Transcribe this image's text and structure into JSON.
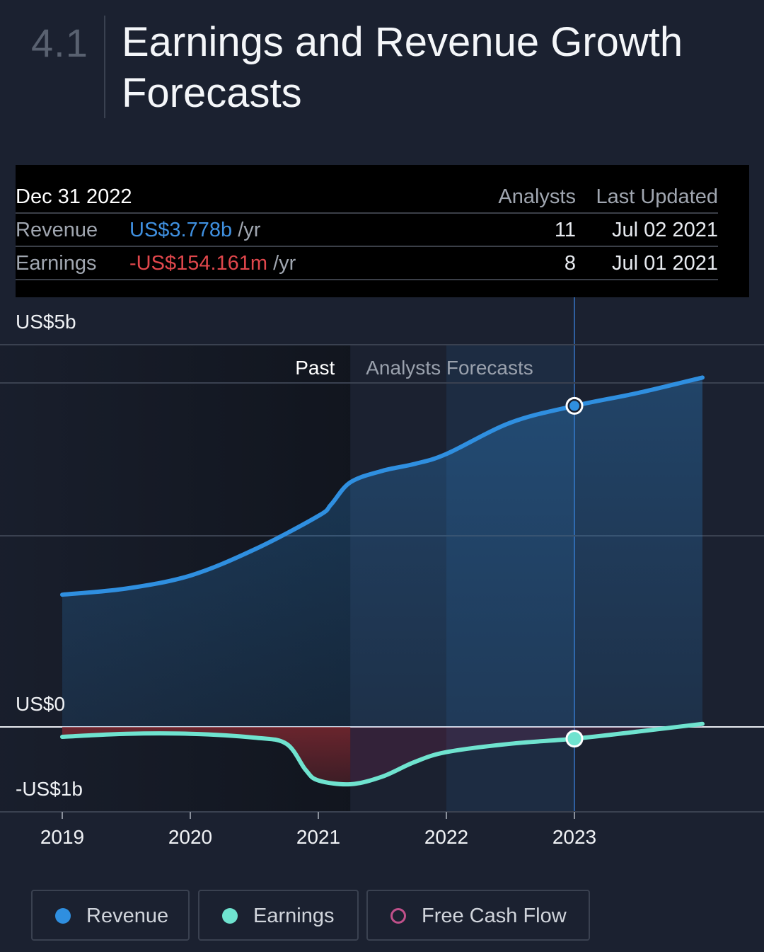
{
  "header": {
    "section_number": "4.1",
    "title": "Earnings and Revenue Growth Forecasts"
  },
  "info_table": {
    "date": "Dec 31 2022",
    "col_analysts": "Analysts",
    "col_last_updated": "Last Updated",
    "rows": [
      {
        "label": "Revenue",
        "value": "US$3.778b",
        "unit": "/yr",
        "analysts": "11",
        "last_updated": "Jul 02 2021"
      },
      {
        "label": "Earnings",
        "value": "-US$154.161m",
        "unit": "/yr",
        "analysts": "8",
        "last_updated": "Jul 01 2021"
      }
    ]
  },
  "legend": {
    "revenue": "Revenue",
    "earnings": "Earnings",
    "free_cash_flow": "Free Cash Flow"
  },
  "colors": {
    "background": "#1b2130",
    "revenue": "#2f8fe0",
    "earnings": "#6fe3cf",
    "free_cash_flow": "#c0508a",
    "negative_fill": "#8a2a32",
    "accent_red": "#e0474c"
  },
  "chart_data": {
    "type": "area",
    "y_tick_labels": [
      "US$5b",
      "US$0",
      "-US$1b"
    ],
    "ylim": [
      -1,
      5
    ],
    "x_tick_labels": [
      "2019",
      "2020",
      "2021",
      "2022",
      "2023"
    ],
    "region_labels": {
      "past": "Past",
      "forecast": "Analysts Forecasts"
    },
    "past_end_year": 2021.25,
    "selected_year": 2023,
    "series": [
      {
        "name": "Revenue",
        "x": [
          2019,
          2019.5,
          2020,
          2020.5,
          2021,
          2021.1,
          2021.25,
          2021.5,
          2021.75,
          2022,
          2022.5,
          2023,
          2023.5,
          2024
        ],
        "y": [
          1.73,
          1.81,
          1.98,
          2.32,
          2.76,
          2.91,
          3.2,
          3.35,
          3.44,
          3.57,
          3.98,
          3.78,
          4.37,
          4.57
        ]
      },
      {
        "name": "Earnings",
        "x": [
          2019,
          2019.5,
          2020,
          2020.5,
          2020.75,
          2020.9,
          2021,
          2021.25,
          2021.5,
          2021.75,
          2022,
          2022.5,
          2023,
          2023.5,
          2024
        ],
        "y": [
          -0.13,
          -0.09,
          -0.09,
          -0.14,
          -0.22,
          -0.56,
          -0.7,
          -0.75,
          -0.65,
          -0.46,
          -0.33,
          -0.22,
          -0.154,
          -0.06,
          0.04
        ]
      }
    ]
  }
}
